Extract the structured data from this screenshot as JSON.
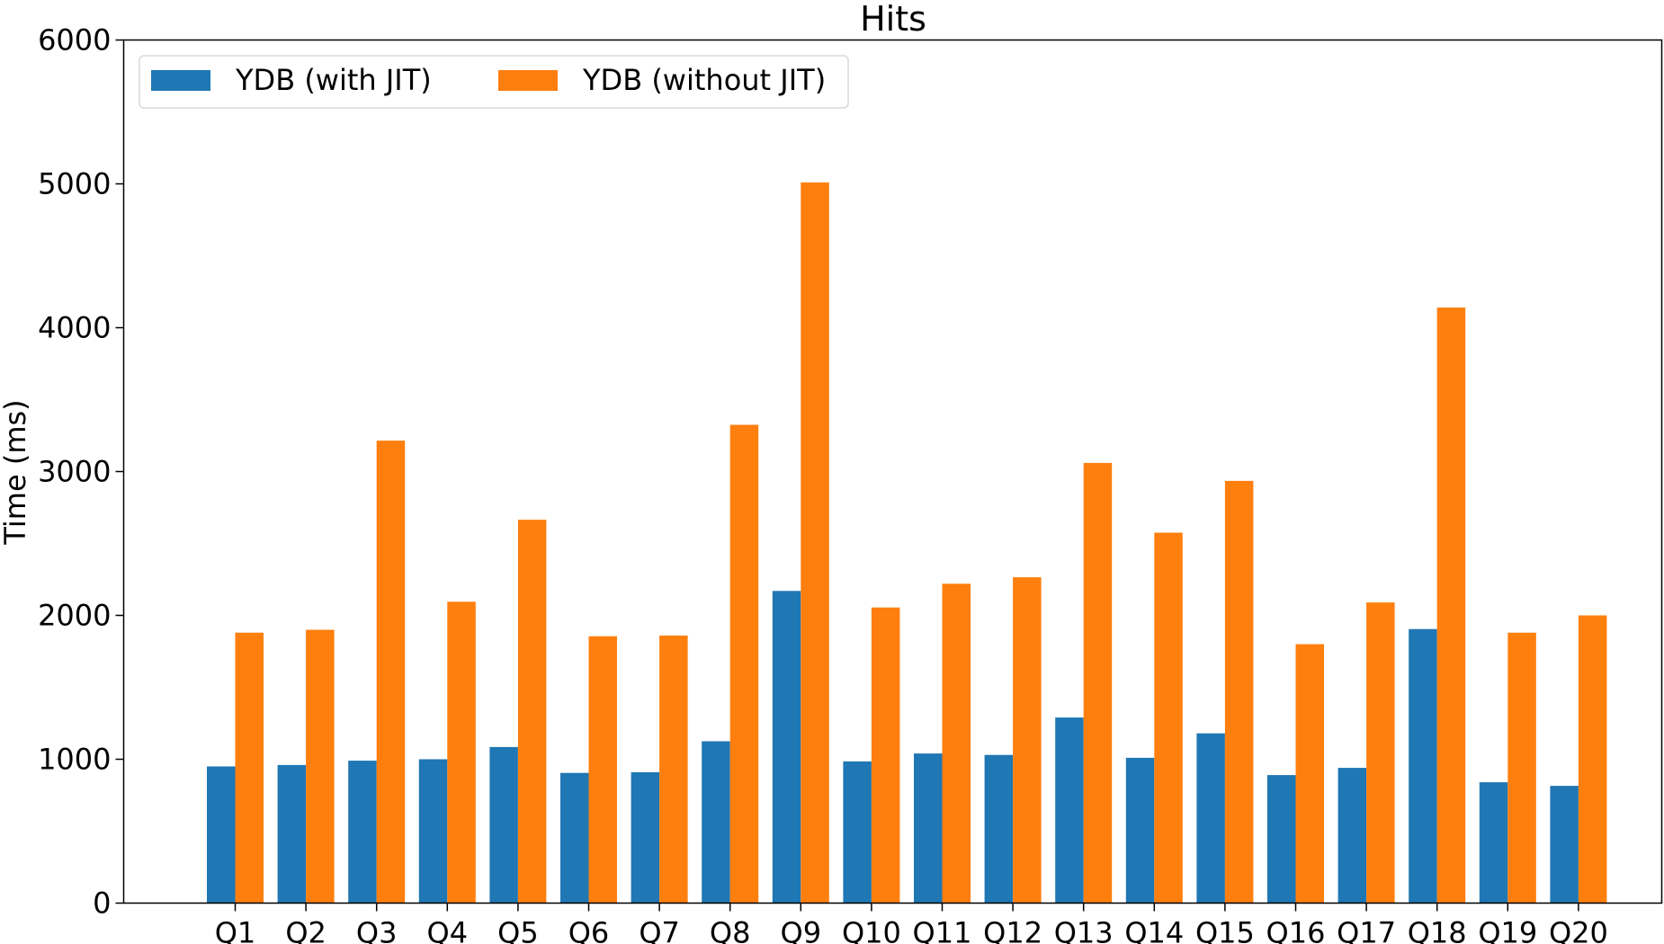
{
  "chart_data": {
    "type": "bar",
    "title": "Hits",
    "xlabel": "",
    "ylabel": "Time (ms)",
    "ylim": [
      0,
      6000
    ],
    "yticks": [
      0,
      1000,
      2000,
      3000,
      4000,
      5000,
      6000
    ],
    "grid": false,
    "legend_position": "top-left",
    "categories": [
      "Q1",
      "Q2",
      "Q3",
      "Q4",
      "Q5",
      "Q6",
      "Q7",
      "Q8",
      "Q9",
      "Q10",
      "Q11",
      "Q12",
      "Q13",
      "Q14",
      "Q15",
      "Q16",
      "Q17",
      "Q18",
      "Q19",
      "Q20"
    ],
    "series": [
      {
        "name": "YDB (with JIT)",
        "color": "#1f77b4",
        "values": [
          950,
          960,
          990,
          1000,
          1085,
          905,
          910,
          1125,
          2170,
          985,
          1040,
          1030,
          1290,
          1010,
          1180,
          890,
          940,
          1905,
          840,
          815
        ]
      },
      {
        "name": "YDB (without JIT)",
        "color": "#ff7f0e",
        "values": [
          1880,
          1900,
          3215,
          2095,
          2665,
          1855,
          1860,
          3325,
          5010,
          2055,
          2220,
          2265,
          3060,
          2575,
          2935,
          1800,
          2090,
          4140,
          1880,
          2000
        ]
      }
    ]
  }
}
